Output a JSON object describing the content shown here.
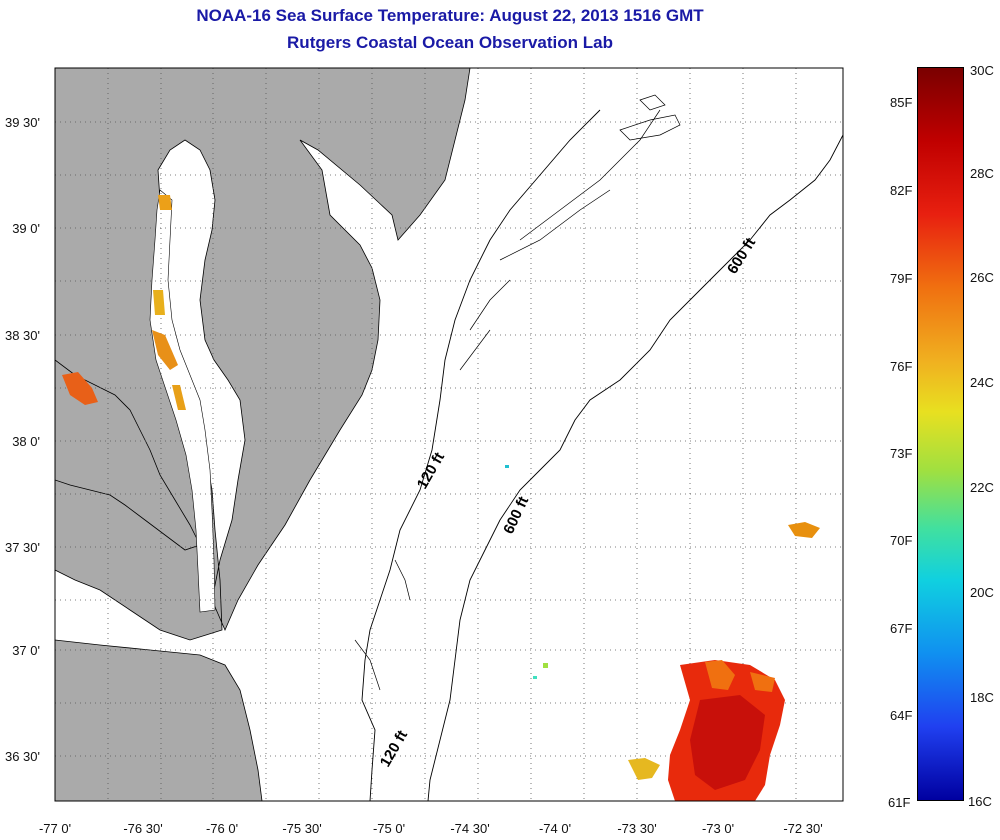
{
  "header": {
    "title": "NOAA-16 Sea Surface Temperature:  August 22, 2013 1516 GMT",
    "subtitle": "Rutgers Coastal Ocean Observation Lab"
  },
  "map": {
    "lon_ticks": [
      "-77 0'",
      "-76 30'",
      "-76 0'",
      "-75 30'",
      "-75 0'",
      "-74 30'",
      "-74 0'",
      "-73 30'",
      "-73 0'",
      "-72 30'"
    ],
    "lat_ticks": [
      "39 30'",
      "39 0'",
      "38 30'",
      "38 0'",
      "37 30'",
      "37 0'",
      "36 30'"
    ],
    "contour_labels": [
      "120 ft",
      "600 ft",
      "600 ft",
      "120 ft"
    ],
    "land_color": "#aaaaaa",
    "water_color": "#ffffff",
    "gridlines": true
  },
  "colorbar": {
    "celsius_labels": [
      "30C",
      "28C",
      "26C",
      "24C",
      "22C",
      "20C",
      "18C",
      "16C"
    ],
    "fahrenheit_labels": [
      "85F",
      "82F",
      "79F",
      "76F",
      "73F",
      "70F",
      "67F",
      "64F",
      "61F"
    ],
    "min_c": 16,
    "max_c": 30
  }
}
